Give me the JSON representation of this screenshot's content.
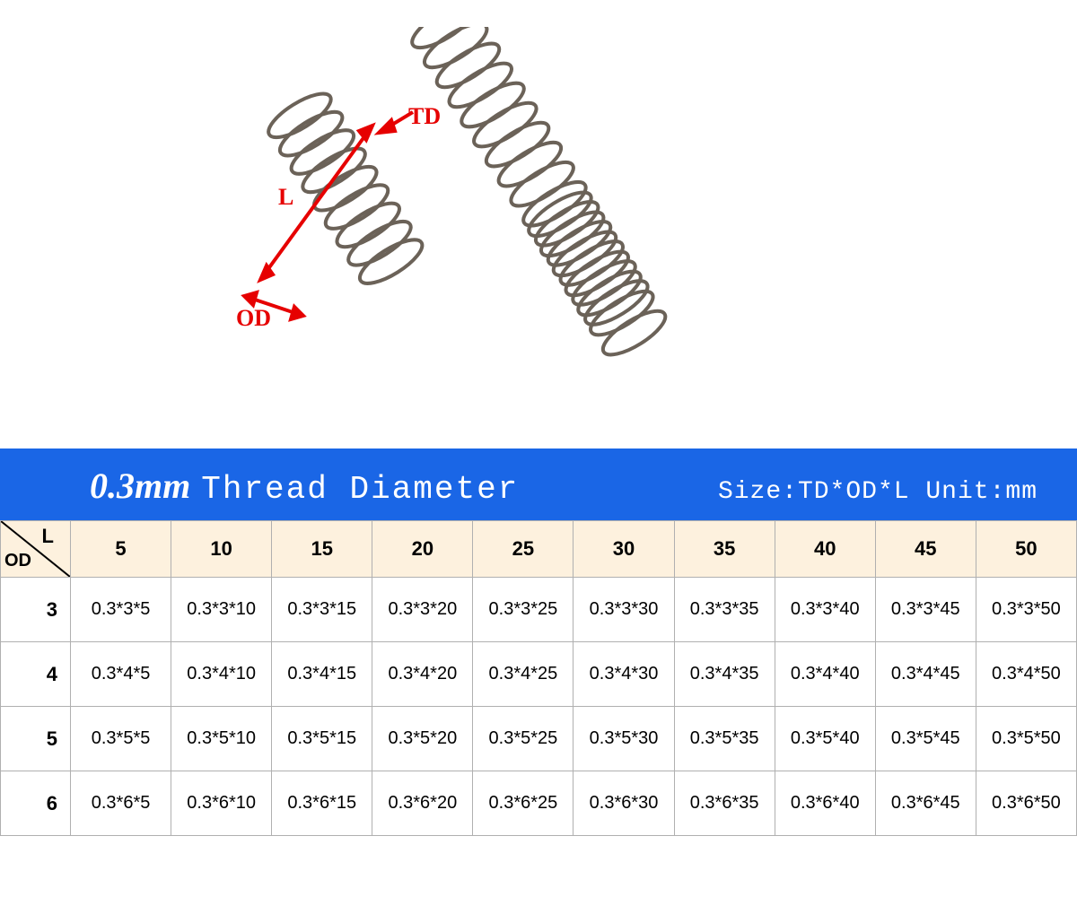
{
  "diagram": {
    "labels": {
      "td": "TD",
      "l": "L",
      "od": "OD"
    },
    "label_color": "#e60000",
    "spring_color": "#6b6258",
    "arrow_color": "#e60000"
  },
  "titlebar": {
    "mm": "0.3mm",
    "text": "Thread Diameter",
    "right": "Size:TD*OD*L Unit:mm",
    "bg_color": "#1a66e6",
    "fg_color": "#ffffff"
  },
  "table": {
    "header_bg": "#fdf1de",
    "border_color": "#b0b0b0",
    "corner": {
      "row_label": "OD",
      "col_label": "L"
    },
    "columns": [
      "5",
      "10",
      "15",
      "20",
      "25",
      "30",
      "35",
      "40",
      "45",
      "50"
    ],
    "rows": [
      {
        "od": "3",
        "cells": [
          "0.3*3*5",
          "0.3*3*10",
          "0.3*3*15",
          "0.3*3*20",
          "0.3*3*25",
          "0.3*3*30",
          "0.3*3*35",
          "0.3*3*40",
          "0.3*3*45",
          "0.3*3*50"
        ]
      },
      {
        "od": "4",
        "cells": [
          "0.3*4*5",
          "0.3*4*10",
          "0.3*4*15",
          "0.3*4*20",
          "0.3*4*25",
          "0.3*4*30",
          "0.3*4*35",
          "0.3*4*40",
          "0.3*4*45",
          "0.3*4*50"
        ]
      },
      {
        "od": "5",
        "cells": [
          "0.3*5*5",
          "0.3*5*10",
          "0.3*5*15",
          "0.3*5*20",
          "0.3*5*25",
          "0.3*5*30",
          "0.3*5*35",
          "0.3*5*40",
          "0.3*5*45",
          "0.3*5*50"
        ]
      },
      {
        "od": "6",
        "cells": [
          "0.3*6*5",
          "0.3*6*10",
          "0.3*6*15",
          "0.3*6*20",
          "0.3*6*25",
          "0.3*6*30",
          "0.3*6*35",
          "0.3*6*40",
          "0.3*6*45",
          "0.3*6*50"
        ]
      }
    ]
  }
}
